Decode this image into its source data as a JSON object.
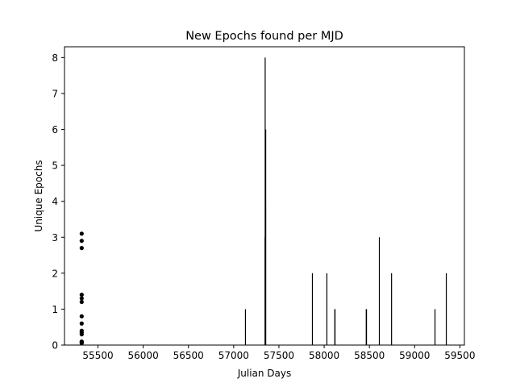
{
  "chart_data": {
    "type": "bar",
    "title": "New Epochs found per MJD",
    "xlabel": "Julian Days",
    "ylabel": "Unique Epochs",
    "xlim": [
      55130,
      59550
    ],
    "ylim": [
      0,
      8.3
    ],
    "grid": false,
    "legend": "none",
    "xticks": [
      55500,
      56000,
      56500,
      57000,
      57500,
      58000,
      58500,
      59000,
      59500
    ],
    "yticks": [
      0,
      1,
      2,
      3,
      4,
      5,
      6,
      7,
      8
    ],
    "series": [
      {
        "mark": "line",
        "x": [
          57130,
          57347,
          57348,
          57350,
          57351,
          57352,
          57353,
          57354,
          57870,
          58030,
          58118,
          58120,
          58465,
          58468,
          58610,
          58745,
          59225,
          59350
        ],
        "values": [
          1,
          3,
          8,
          6,
          5,
          6,
          4,
          6,
          2,
          2,
          1,
          1,
          1,
          1,
          3,
          2,
          1,
          2
        ]
      },
      {
        "mark": "point",
        "x": [
          55320,
          55320,
          55320,
          55320,
          55320,
          55320,
          55320,
          55320,
          55320,
          55320,
          55320,
          55320,
          55320,
          55320
        ],
        "values": [
          3.1,
          2.9,
          2.7,
          1.4,
          1.3,
          1.2,
          0.8,
          0.6,
          0.4,
          0.35,
          0.3,
          0.1,
          0.08,
          0.05
        ]
      }
    ]
  }
}
